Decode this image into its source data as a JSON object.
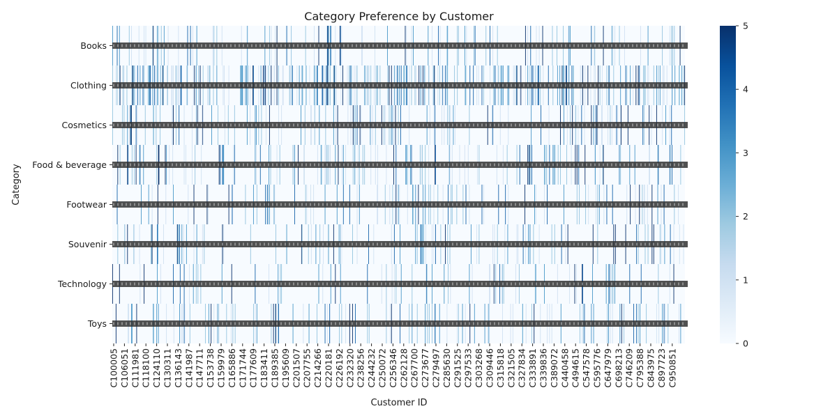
{
  "chart_data": {
    "type": "heatmap",
    "title": "Category Preference by Customer",
    "xlabel": "Customer ID",
    "ylabel": "Category",
    "rows": [
      "Books",
      "Clothing",
      "Cosmetics",
      "Food & beverage",
      "Footwear",
      "Souvenir",
      "Technology",
      "Toys"
    ],
    "x_tick_labels": [
      "C100005",
      "C106051",
      "C111981",
      "C118100",
      "C124110",
      "C130311",
      "C136143",
      "C141987",
      "C147711",
      "C153738",
      "C159979",
      "C165886",
      "C171744",
      "C177609",
      "C183411",
      "C189385",
      "C195609",
      "C201507",
      "C207755",
      "C214266",
      "C220181",
      "C226192",
      "C232320",
      "C238256",
      "C244232",
      "C250072",
      "C256346",
      "C262128",
      "C267700",
      "C273677",
      "C279497",
      "C285630",
      "C291525",
      "C297533",
      "C303268",
      "C309446",
      "C315818",
      "C321505",
      "C327834",
      "C333891",
      "C339836",
      "C389072",
      "C440458",
      "C494615",
      "C547578",
      "C595776",
      "C647979",
      "C698213",
      "C746209",
      "C795388",
      "C843975",
      "C897723",
      "C950851"
    ],
    "n_columns": 1000,
    "colorbar": {
      "min": 0,
      "max": 5,
      "ticks": [
        0,
        1,
        2,
        3,
        4,
        5
      ],
      "colormap": "Blues"
    },
    "cell_annotations_overplotted": true,
    "colors": {
      "low": "#f7fbff",
      "high": "#08306b"
    }
  }
}
